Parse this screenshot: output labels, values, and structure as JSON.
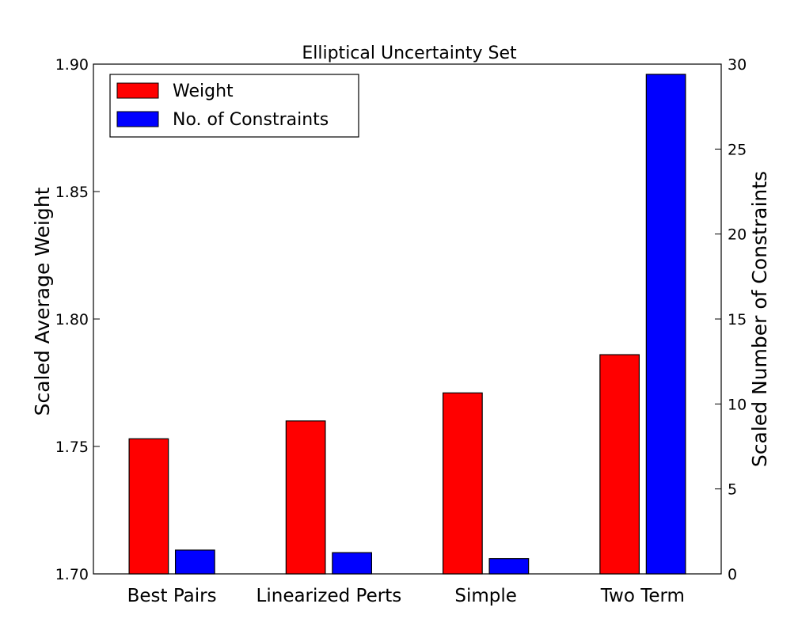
{
  "chart_data": {
    "type": "bar",
    "title": "Elliptical Uncertainty Set",
    "categories": [
      "Best Pairs",
      "Linearized Perts",
      "Simple",
      "Two Term"
    ],
    "series": [
      {
        "name": "Weight",
        "axis": "left",
        "color": "#ff0000",
        "values": [
          1.753,
          1.76,
          1.771,
          1.786
        ]
      },
      {
        "name": "No. of Constraints",
        "axis": "right",
        "color": "#0000ff",
        "values": [
          1.4,
          1.25,
          0.9,
          29.4
        ]
      }
    ],
    "ylabel": "Scaled Average Weight",
    "ylabel_right": "Scaled Number of Constraints",
    "ylim": [
      1.7,
      1.9
    ],
    "ylim_right": [
      0,
      30
    ],
    "yticks": [
      "1.70",
      "1.75",
      "1.80",
      "1.85",
      "1.90"
    ],
    "yticks_right": [
      "0",
      "5",
      "10",
      "15",
      "20",
      "25",
      "30"
    ],
    "legend_placement": "top-left",
    "grid": false
  }
}
